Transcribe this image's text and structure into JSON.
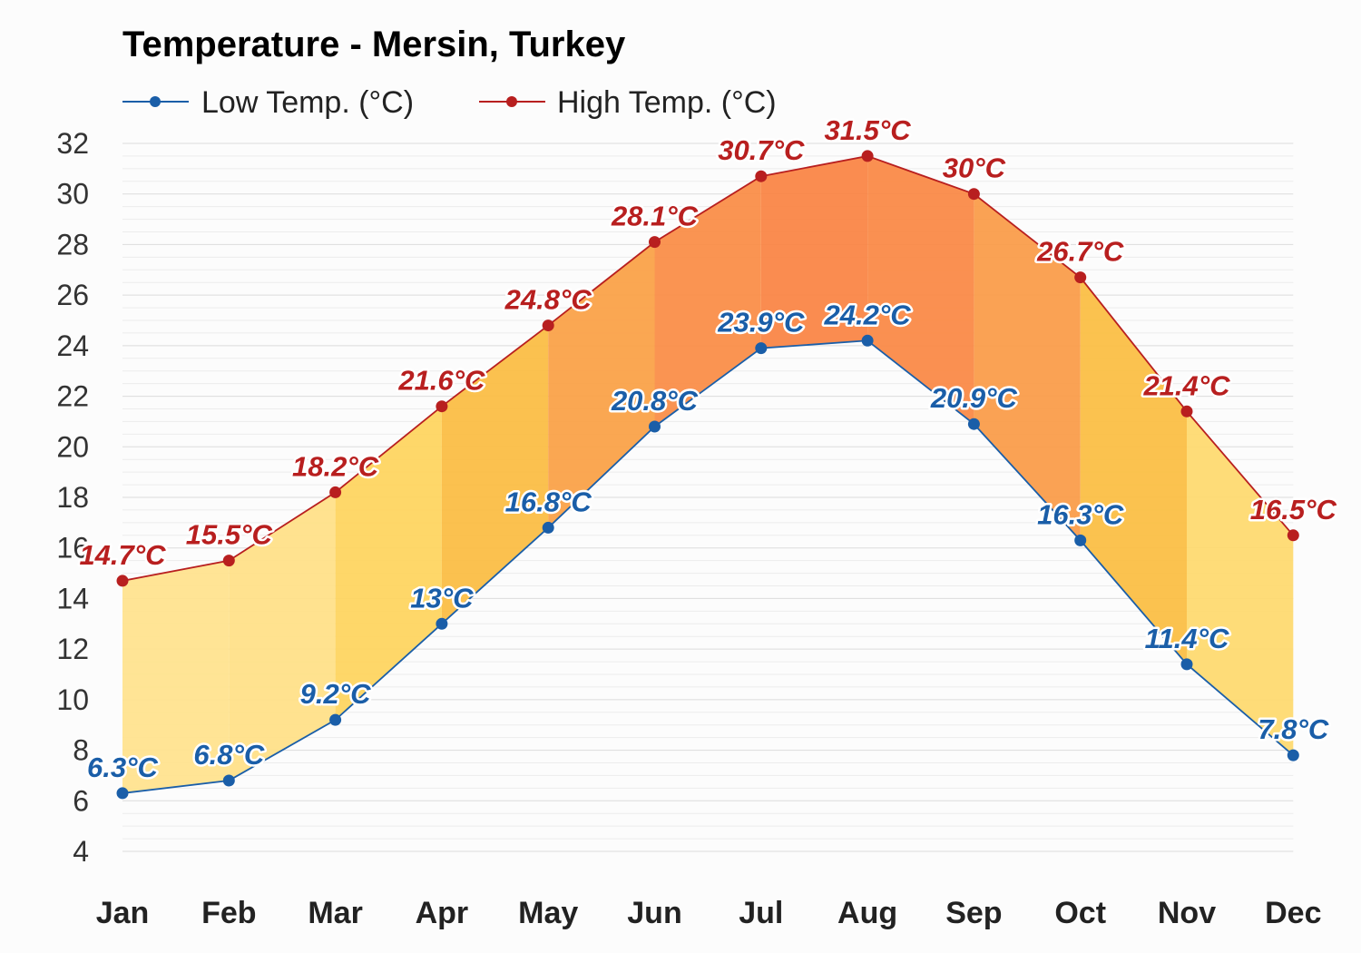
{
  "chart_data": {
    "type": "line",
    "title": "Temperature - Mersin, Turkey",
    "categories": [
      "Jan",
      "Feb",
      "Mar",
      "Apr",
      "May",
      "Jun",
      "Jul",
      "Aug",
      "Sep",
      "Oct",
      "Nov",
      "Dec"
    ],
    "series": [
      {
        "name": "Low Temp. (°C)",
        "color": "#1a5ea8",
        "values": [
          6.3,
          6.8,
          9.2,
          13,
          16.8,
          20.8,
          23.9,
          24.2,
          20.9,
          16.3,
          11.4,
          7.8
        ],
        "labels": [
          "6.3°C",
          "6.8°C",
          "9.2°C",
          "13°C",
          "16.8°C",
          "20.8°C",
          "23.9°C",
          "24.2°C",
          "20.9°C",
          "16.3°C",
          "11.4°C",
          "7.8°C"
        ]
      },
      {
        "name": "High Temp. (°C)",
        "color": "#b81f1f",
        "values": [
          14.7,
          15.5,
          18.2,
          21.6,
          24.8,
          28.1,
          30.7,
          31.5,
          30,
          26.7,
          21.4,
          16.5
        ],
        "labels": [
          "14.7°C",
          "15.5°C",
          "18.2°C",
          "21.6°C",
          "24.8°C",
          "28.1°C",
          "30.7°C",
          "31.5°C",
          "30°C",
          "26.7°C",
          "21.4°C",
          "16.5°C"
        ]
      }
    ],
    "yticks": [
      "4",
      "6",
      "8",
      "10",
      "12",
      "14",
      "16",
      "18",
      "20",
      "22",
      "24",
      "26",
      "28",
      "30",
      "32"
    ],
    "ylim": [
      4,
      32
    ],
    "legend_position": "top-left",
    "grid": true,
    "band_fill": "between low and high, colored by temperature (yellow to orange)"
  }
}
